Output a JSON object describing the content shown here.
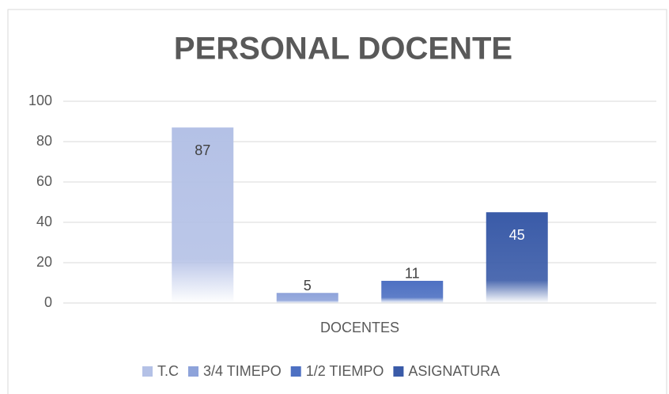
{
  "chart_data": {
    "type": "bar",
    "title": "PERSONAL DOCENTE",
    "categories": [
      "DOCENTES"
    ],
    "series": [
      {
        "name": "T.C",
        "color": "#b4c1e6",
        "values": [
          87
        ]
      },
      {
        "name": "3/4 TIMEPO",
        "color": "#8ea3da",
        "values": [
          5
        ]
      },
      {
        "name": "1/2 TIEMPO",
        "color": "#4d70c2",
        "values": [
          11
        ]
      },
      {
        "name": "ASIGNATURA",
        "color": "#3a5ba8",
        "values": [
          45
        ]
      }
    ],
    "ylim": [
      0,
      100
    ],
    "yticks": [
      0,
      20,
      40,
      60,
      80,
      100
    ],
    "grid": true,
    "legend": "bottom"
  }
}
